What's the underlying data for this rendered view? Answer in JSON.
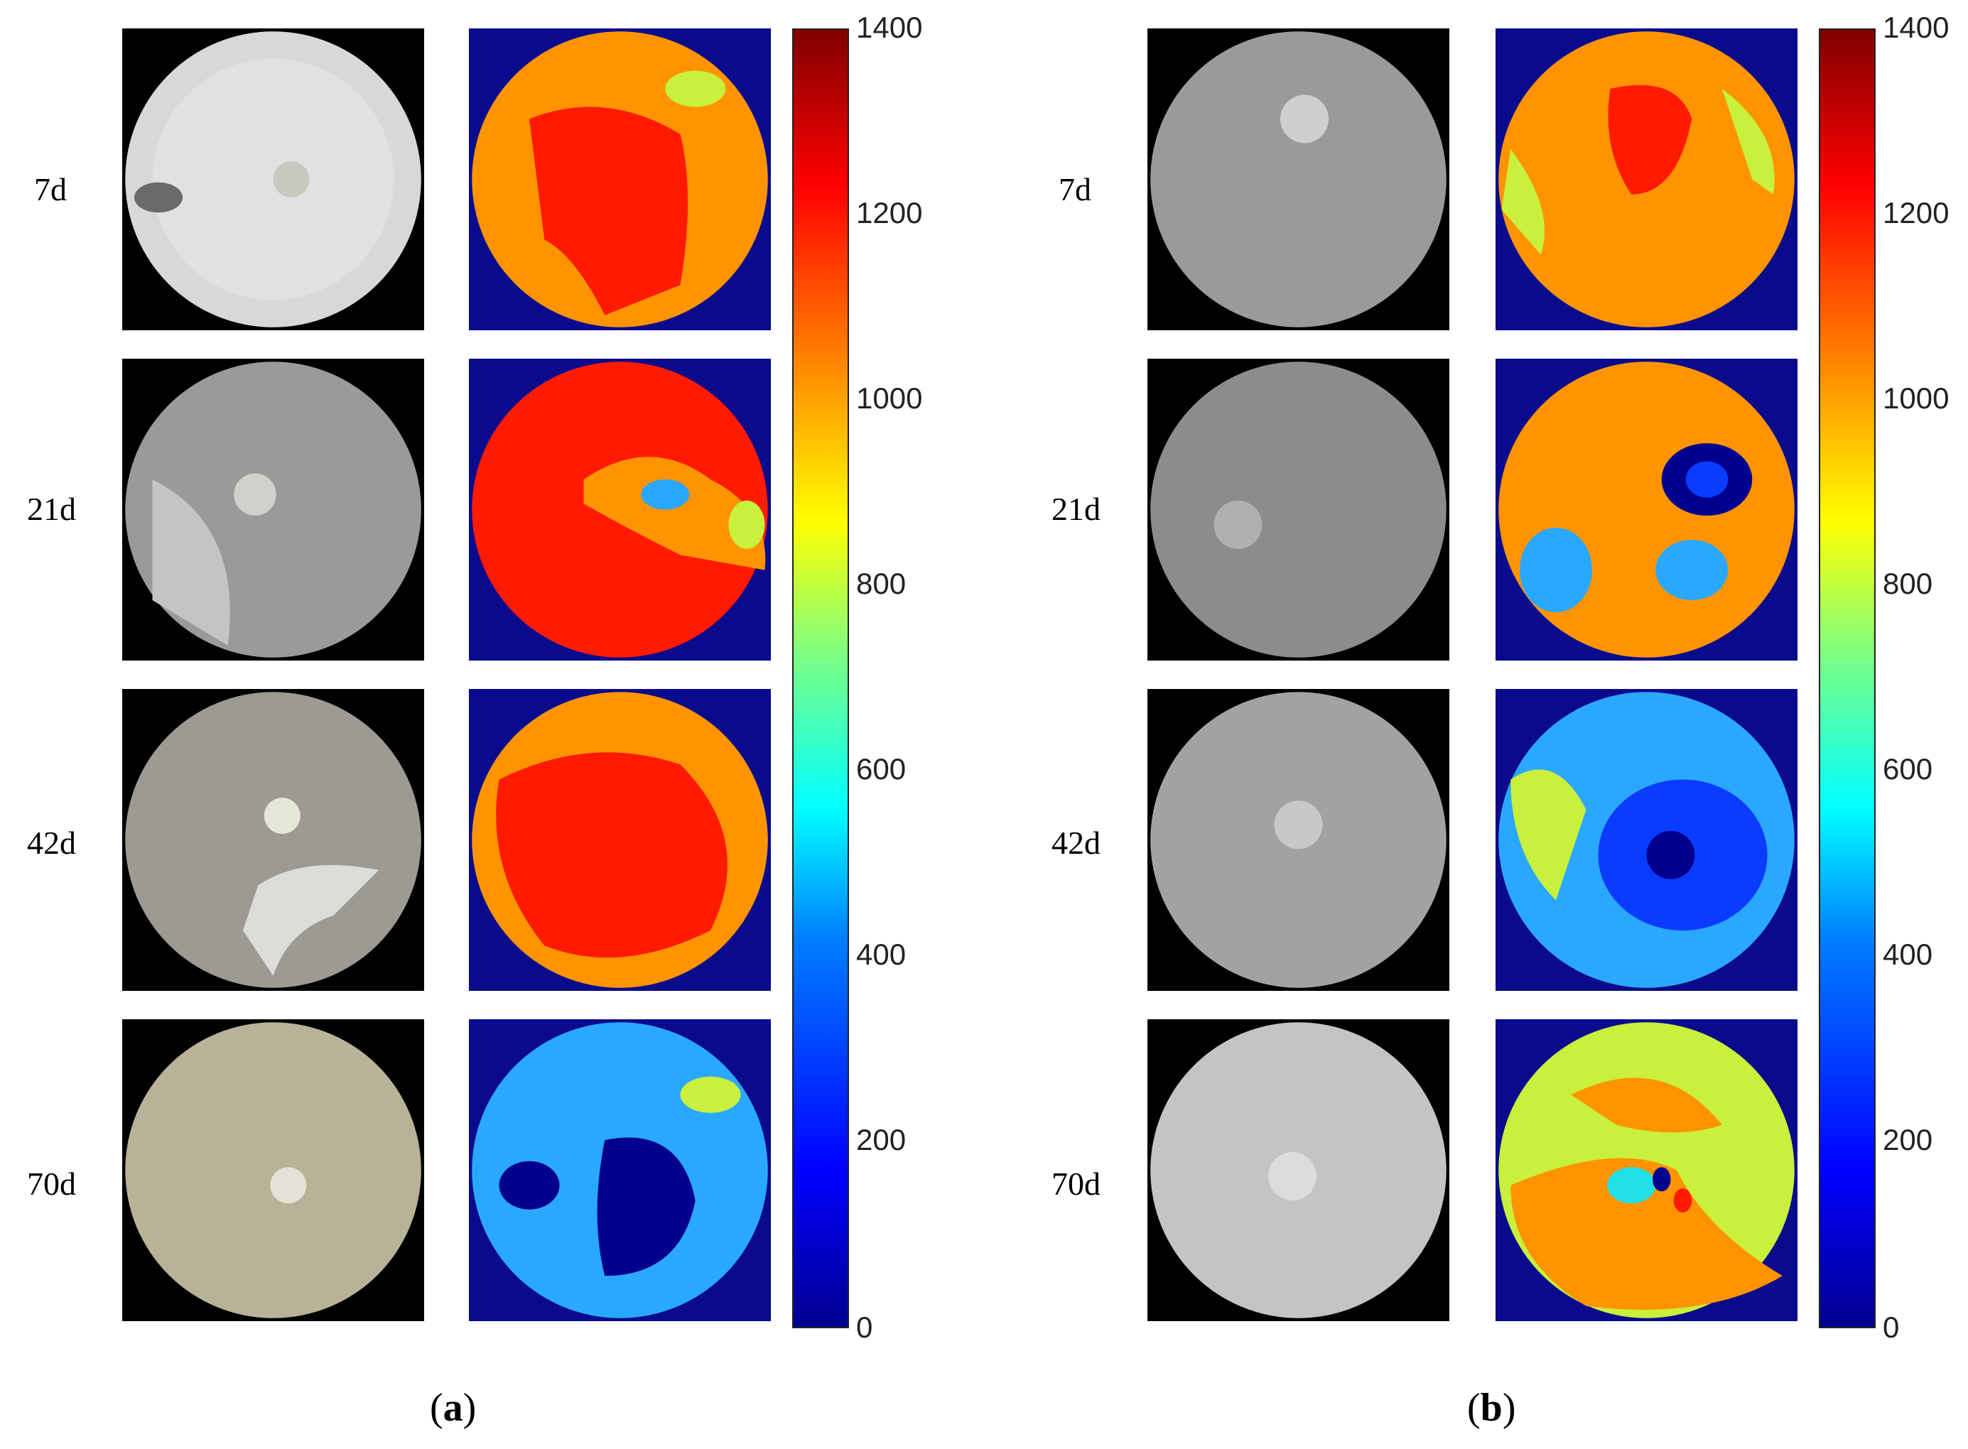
{
  "colorbar": {
    "ticks": [
      "1400",
      "1200",
      "1000",
      "800",
      "600",
      "400",
      "200",
      "0"
    ],
    "min": 0,
    "max": 1400,
    "colormap": "jet"
  },
  "panels": [
    {
      "caption_open": "(",
      "caption_letter": "a",
      "caption_close": ")",
      "rows": [
        {
          "label": "7d"
        },
        {
          "label": "21d"
        },
        {
          "label": "42d"
        },
        {
          "label": "70d"
        }
      ]
    },
    {
      "caption_open": "(",
      "caption_letter": "b",
      "caption_close": ")",
      "rows": [
        {
          "label": "7d"
        },
        {
          "label": "21d"
        },
        {
          "label": "42d"
        },
        {
          "label": "70d"
        }
      ]
    }
  ],
  "colors": {
    "deep_blue": "#00008f",
    "blue": "#0a3cff",
    "light_blue": "#2aa8ff",
    "cyan": "#22e0e8",
    "yellow_green": "#c8f03c",
    "orange": "#ff9400",
    "red": "#ff1a00",
    "dark_red": "#800000"
  }
}
